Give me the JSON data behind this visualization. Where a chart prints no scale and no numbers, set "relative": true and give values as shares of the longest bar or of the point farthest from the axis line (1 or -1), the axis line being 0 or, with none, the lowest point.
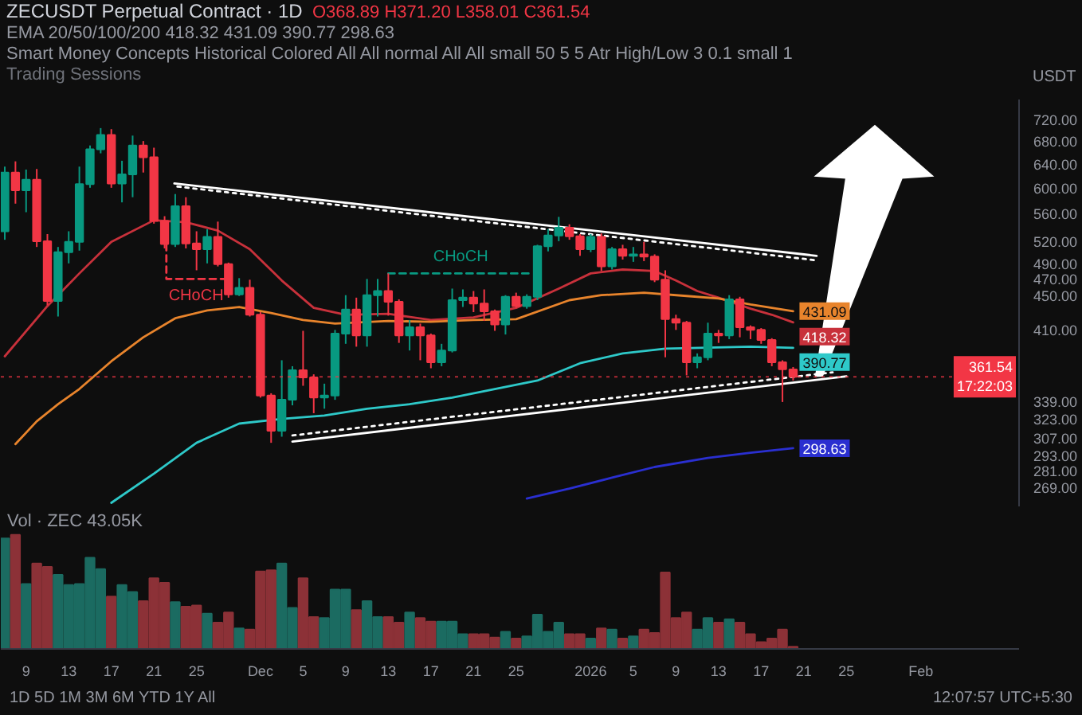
{
  "chart_data": [
    {
      "type": "candlestick",
      "title": "ZECUSDT Perpetual Contract · 1D",
      "subtitle": "O368.89 H371.20 L358.01 C361.54",
      "ylabel": "USDT",
      "annotations": [
        "EMA 20/50/100/200 418.32 431.09 390.77 298.63",
        "Smart Money Concepts Historical Colored All All normal All All small 50 5 5 Atr High/Low 3 0.1 small 1",
        "Trading Sessions"
      ],
      "x": [
        "2025-11-07",
        "2025-11-08",
        "2025-11-09",
        "2025-11-10",
        "2025-11-11",
        "2025-11-12",
        "2025-11-13",
        "2025-11-14",
        "2025-11-15",
        "2025-11-16",
        "2025-11-17",
        "2025-11-18",
        "2025-11-19",
        "2025-11-20",
        "2025-11-21",
        "2025-11-22",
        "2025-11-23",
        "2025-11-24",
        "2025-11-25",
        "2025-11-26",
        "2025-11-27",
        "2025-11-28",
        "2025-11-29",
        "2025-11-30",
        "2025-12-01",
        "2025-12-02",
        "2025-12-03",
        "2025-12-04",
        "2025-12-05",
        "2025-12-06",
        "2025-12-07",
        "2025-12-08",
        "2025-12-09",
        "2025-12-10",
        "2025-12-11",
        "2025-12-12",
        "2025-12-13",
        "2025-12-14",
        "2025-12-15",
        "2025-12-16",
        "2025-12-17",
        "2025-12-18",
        "2025-12-19",
        "2025-12-20",
        "2025-12-21",
        "2025-12-22",
        "2025-12-23",
        "2025-12-24",
        "2025-12-25",
        "2025-12-26",
        "2025-12-27",
        "2025-12-28",
        "2025-12-29",
        "2025-12-30",
        "2025-12-31",
        "2026-01-01",
        "2026-01-02",
        "2026-01-03",
        "2026-01-04",
        "2026-01-05",
        "2026-01-06",
        "2026-01-07",
        "2026-01-08",
        "2026-01-09",
        "2026-01-10",
        "2026-01-11",
        "2026-01-12",
        "2026-01-13",
        "2026-01-14",
        "2026-01-15",
        "2026-01-16",
        "2026-01-17",
        "2026-01-18",
        "2026-01-19",
        "2026-01-20"
      ],
      "ohlc": [
        [
          534,
          635,
          522,
          625
        ],
        [
          625,
          644,
          575,
          596
        ],
        [
          596,
          630,
          562,
          613
        ],
        [
          613,
          631,
          512,
          520
        ],
        [
          520,
          530,
          438,
          443
        ],
        [
          443,
          512,
          425,
          505
        ],
        [
          505,
          534,
          490,
          519
        ],
        [
          519,
          635,
          507,
          606
        ],
        [
          606,
          672,
          600,
          665
        ],
        [
          665,
          704,
          658,
          691
        ],
        [
          691,
          702,
          600,
          607
        ],
        [
          607,
          645,
          577,
          622
        ],
        [
          622,
          690,
          585,
          672
        ],
        [
          672,
          680,
          625,
          651
        ],
        [
          651,
          668,
          545,
          549
        ],
        [
          549,
          556,
          510,
          516
        ],
        [
          516,
          590,
          512,
          571
        ],
        [
          571,
          585,
          510,
          517
        ],
        [
          517,
          534,
          481,
          509
        ],
        [
          509,
          537,
          490,
          526
        ],
        [
          526,
          548,
          486,
          489
        ],
        [
          489,
          491,
          447,
          451
        ],
        [
          451,
          471,
          449,
          459
        ],
        [
          459,
          469,
          425,
          427
        ],
        [
          427,
          430,
          342,
          344
        ],
        [
          344,
          346,
          303,
          313
        ],
        [
          313,
          378,
          308,
          340
        ],
        [
          340,
          372,
          335,
          368
        ],
        [
          368,
          409,
          353,
          361
        ],
        [
          361,
          364,
          328,
          342
        ],
        [
          342,
          355,
          332,
          344
        ],
        [
          344,
          410,
          340,
          406
        ],
        [
          406,
          450,
          395,
          433
        ],
        [
          433,
          447,
          392,
          404
        ],
        [
          404,
          470,
          392,
          450
        ],
        [
          450,
          470,
          425,
          455
        ],
        [
          455,
          477,
          426,
          442
        ],
        [
          442,
          445,
          396,
          404
        ],
        [
          404,
          421,
          388,
          413
        ],
        [
          413,
          417,
          378,
          404
        ],
        [
          404,
          406,
          370,
          376
        ],
        [
          376,
          395,
          372,
          388
        ],
        [
          388,
          458,
          386,
          444
        ],
        [
          444,
          457,
          436,
          447
        ],
        [
          447,
          455,
          430,
          440
        ],
        [
          440,
          457,
          420,
          431
        ],
        [
          431,
          433,
          409,
          416
        ],
        [
          416,
          450,
          405,
          448
        ],
        [
          448,
          453,
          435,
          437
        ],
        [
          437,
          451,
          434,
          448
        ],
        [
          448,
          515,
          444,
          513
        ],
        [
          513,
          537,
          506,
          528
        ],
        [
          528,
          555,
          520,
          539
        ],
        [
          539,
          544,
          522,
          527
        ],
        [
          527,
          530,
          500,
          509
        ],
        [
          509,
          530,
          505,
          526
        ],
        [
          526,
          531,
          480,
          486
        ],
        [
          486,
          512,
          482,
          509
        ],
        [
          509,
          515,
          495,
          500
        ],
        [
          500,
          512,
          492,
          502
        ],
        [
          502,
          519,
          493,
          499
        ],
        [
          499,
          502,
          466,
          469
        ],
        [
          469,
          481,
          381,
          422
        ],
        [
          422,
          427,
          410,
          418
        ],
        [
          418,
          420,
          363,
          376
        ],
        [
          376,
          385,
          370,
          381
        ],
        [
          381,
          418,
          378,
          406
        ],
        [
          406,
          410,
          396,
          404
        ],
        [
          404,
          450,
          400,
          445
        ],
        [
          445,
          448,
          402,
          413
        ],
        [
          413,
          415,
          400,
          410
        ],
        [
          410,
          412,
          395,
          399
        ],
        [
          399,
          401,
          372,
          376
        ],
        [
          376,
          378,
          338,
          369
        ],
        [
          368.89,
          371.2,
          358.01,
          361.54
        ]
      ],
      "colors": [
        "#089981",
        "#f23645",
        "#089981",
        "#f23645",
        "#f23645",
        "#089981",
        "#089981",
        "#089981",
        "#089981",
        "#089981",
        "#f23645",
        "#089981",
        "#089981",
        "#f23645",
        "#f23645",
        "#f23645",
        "#089981",
        "#f23645",
        "#f23645",
        "#089981",
        "#f23645",
        "#f23645",
        "#089981",
        "#f23645",
        "#f23645",
        "#f23645",
        "#089981",
        "#089981",
        "#f23645",
        "#f23645",
        "#089981",
        "#089981",
        "#089981",
        "#f23645",
        "#089981",
        "#089981",
        "#f23645",
        "#f23645",
        "#089981",
        "#f23645",
        "#f23645",
        "#089981",
        "#089981",
        "#089981",
        "#f23645",
        "#f23645",
        "#f23645",
        "#089981",
        "#f23645",
        "#089981",
        "#089981",
        "#089981",
        "#089981",
        "#f23645",
        "#f23645",
        "#089981",
        "#f23645",
        "#089981",
        "#f23645",
        "#089981",
        "#f23645",
        "#f23645",
        "#f23645",
        "#f23645",
        "#f23645",
        "#089981",
        "#089981",
        "#f23645",
        "#089981",
        "#f23645",
        "#f23645",
        "#f23645",
        "#f23645",
        "#f23645",
        "#f23645"
      ],
      "series": [
        {
          "type": "line",
          "color": "#c8313b",
          "x": [
            "2025-11-07",
            "2025-11-11",
            "2025-11-14",
            "2025-11-17",
            "2025-11-21",
            "2025-11-24",
            "2025-11-27",
            "2025-11-30",
            "2025-12-03",
            "2025-12-06",
            "2025-12-09",
            "2025-12-13",
            "2025-12-17",
            "2025-12-21",
            "2025-12-25",
            "2025-12-29",
            "2026-01-01",
            "2026-01-04",
            "2026-01-07",
            "2026-01-09",
            "2026-01-11",
            "2026-01-13",
            "2026-01-16",
            "2026-01-18",
            "2026-01-20"
          ],
          "values": [
            382,
            437,
            477,
            519,
            550,
            547,
            535,
            509,
            468,
            435,
            427,
            428,
            421,
            424,
            435,
            458,
            477,
            482,
            480,
            468,
            455,
            447,
            434,
            427,
            418.32
          ],
          "value_labels": [
            null,
            null,
            null,
            null,
            null,
            null,
            null,
            null,
            null,
            null,
            null,
            null,
            null,
            null,
            null,
            null,
            null,
            null,
            null,
            null,
            null,
            null,
            null,
            null,
            "418.32"
          ]
        },
        {
          "type": "line",
          "color": "#e8842c",
          "x": [
            "2025-11-08",
            "2025-11-10",
            "2025-11-12",
            "2025-11-14",
            "2025-11-17",
            "2025-11-20",
            "2025-11-23",
            "2025-11-26",
            "2025-11-29",
            "2025-12-02",
            "2025-12-05",
            "2025-12-08",
            "2025-12-13",
            "2025-12-17",
            "2025-12-21",
            "2025-12-25",
            "2025-12-30",
            "2026-01-02",
            "2026-01-06",
            "2026-01-10",
            "2026-01-13",
            "2026-01-16",
            "2026-01-20"
          ],
          "values": [
            302,
            321,
            336,
            350,
            377,
            402,
            423,
            432,
            436,
            429,
            421,
            417,
            420,
            419,
            421,
            422,
            444,
            450,
            453,
            449,
            446,
            439,
            431.09
          ],
          "value_labels": [
            null,
            null,
            null,
            null,
            null,
            null,
            null,
            null,
            null,
            null,
            null,
            null,
            null,
            null,
            null,
            null,
            null,
            null,
            null,
            null,
            null,
            null,
            "431.09"
          ]
        },
        {
          "type": "line",
          "color": "#2ec9c9",
          "x": [
            "2025-11-17",
            "2025-11-21",
            "2025-11-25",
            "2025-11-29",
            "2025-12-03",
            "2025-12-07",
            "2025-12-11",
            "2025-12-15",
            "2025-12-19",
            "2025-12-23",
            "2025-12-27",
            "2025-12-31",
            "2026-01-04",
            "2026-01-08",
            "2026-01-12",
            "2026-01-16",
            "2026-01-20"
          ],
          "values": [
            258,
            279,
            303,
            319,
            323,
            326,
            332,
            336,
            342,
            350,
            358,
            375,
            385,
            390,
            391,
            392,
            390.77
          ],
          "value_labels": [
            null,
            null,
            null,
            null,
            null,
            null,
            null,
            null,
            null,
            null,
            null,
            null,
            null,
            null,
            null,
            null,
            "390.77"
          ]
        },
        {
          "type": "line",
          "color": "#2a2fd0",
          "x": [
            "2025-12-26",
            "2025-12-30",
            "2026-01-03",
            "2026-01-07",
            "2026-01-12",
            "2026-01-16",
            "2026-01-20"
          ],
          "values": [
            261,
            268,
            276,
            284,
            291,
            295,
            298.63
          ],
          "value_labels": [
            null,
            null,
            null,
            null,
            null,
            null,
            "298.63"
          ]
        },
        {
          "type": "line",
          "color": "#ffffff",
          "line_style": "solid",
          "x": [
            "2025-11-22T22:00",
            "2026-01-22T05:00"
          ],
          "values": [
            607,
            500
          ]
        },
        {
          "type": "line",
          "color": "#ffffff",
          "line_style": "dotted",
          "x": [
            "2025-11-23T05:00",
            "2026-01-22T05:00"
          ],
          "values": [
            602,
            494
          ]
        },
        {
          "type": "line",
          "color": "#ffffff",
          "line_style": "solid",
          "x": [
            "2025-12-04",
            "2026-01-25"
          ],
          "values": [
            304,
            362
          ]
        },
        {
          "type": "line",
          "color": "#ffffff",
          "line_style": "dotted",
          "x": [
            "2025-12-04",
            "2026-01-23T17:00"
          ],
          "values": [
            309,
            366
          ]
        },
        {
          "type": "line",
          "name": "CHoCH",
          "color": "#f23645",
          "line_style": "dashed",
          "x": [
            "2025-11-22T04:00",
            "2025-11-22T04:00",
            "2025-11-27T18:00"
          ],
          "values": [
            516,
            470,
            470
          ]
        },
        {
          "type": "line",
          "name": "CHoCH",
          "color": "#089981",
          "line_style": "dashed",
          "x": [
            "2025-12-13",
            "2025-12-26T14:00"
          ],
          "values": [
            477,
            477
          ]
        }
      ],
      "ref_lines": [
        {
          "axis": "y",
          "value": 361.54,
          "label": "361.54\n17:22:03",
          "color": "#f23645",
          "line_style": "dotted"
        }
      ],
      "xlim": [
        "2025-11-06T15:00",
        "2026-02-10T05:00"
      ],
      "ylim": [
        255,
        760
      ],
      "log": true,
      "yticks": [
        {
          "value": 720,
          "label": "720.00"
        },
        {
          "value": 680,
          "label": "680.00"
        },
        {
          "value": 640,
          "label": "640.00"
        },
        {
          "value": 600,
          "label": "600.00"
        },
        {
          "value": 560,
          "label": "560.00"
        },
        {
          "value": 520,
          "label": "520.00"
        },
        {
          "value": 490,
          "label": "490.00"
        },
        {
          "value": 470,
          "label": "470.00"
        },
        {
          "value": 450,
          "label": "450.00"
        },
        {
          "value": 410,
          "label": "410.00"
        },
        {
          "value": 339,
          "label": "339.00"
        },
        {
          "value": 323,
          "label": "323.00"
        },
        {
          "value": 307,
          "label": "307.00"
        },
        {
          "value": 293,
          "label": "293.00"
        },
        {
          "value": 281,
          "label": "281.00"
        },
        {
          "value": 269,
          "label": "269.00"
        }
      ],
      "tick_labels": "y"
    },
    {
      "type": "bar",
      "title": "Vol · ZEC 43.05K",
      "relative": true,
      "annotations": [
        "1D 5D 1M 3M 6M YTD 1Y All",
        "12:07:57 UTC+5:30"
      ],
      "x": [
        "2025-11-07",
        "2025-11-08",
        "2025-11-09",
        "2025-11-10",
        "2025-11-11",
        "2025-11-12",
        "2025-11-13",
        "2025-11-14",
        "2025-11-15",
        "2025-11-16",
        "2025-11-17",
        "2025-11-18",
        "2025-11-19",
        "2025-11-20",
        "2025-11-21",
        "2025-11-22",
        "2025-11-23",
        "2025-11-24",
        "2025-11-25",
        "2025-11-26",
        "2025-11-27",
        "2025-11-28",
        "2025-11-29",
        "2025-11-30",
        "2025-12-01",
        "2025-12-02",
        "2025-12-03",
        "2025-12-04",
        "2025-12-05",
        "2025-12-06",
        "2025-12-07",
        "2025-12-08",
        "2025-12-09",
        "2025-12-10",
        "2025-12-11",
        "2025-12-12",
        "2025-12-13",
        "2025-12-14",
        "2025-12-15",
        "2025-12-16",
        "2025-12-17",
        "2025-12-18",
        "2025-12-19",
        "2025-12-20",
        "2025-12-21",
        "2025-12-22",
        "2025-12-23",
        "2025-12-24",
        "2025-12-25",
        "2025-12-26",
        "2025-12-27",
        "2025-12-28",
        "2025-12-29",
        "2025-12-30",
        "2025-12-31",
        "2026-01-01",
        "2026-01-02",
        "2026-01-03",
        "2026-01-04",
        "2026-01-05",
        "2026-01-06",
        "2026-01-07",
        "2026-01-08",
        "2026-01-09",
        "2026-01-10",
        "2026-01-11",
        "2026-01-12",
        "2026-01-13",
        "2026-01-14",
        "2026-01-15",
        "2026-01-16",
        "2026-01-17",
        "2026-01-18",
        "2026-01-19",
        "2026-01-20"
      ],
      "values": [
        0.97,
        1,
        0.57,
        0.75,
        0.72,
        0.65,
        0.56,
        0.57,
        0.8,
        0.7,
        0.46,
        0.56,
        0.5,
        0.42,
        0.62,
        0.58,
        0.41,
        0.37,
        0.38,
        0.31,
        0.23,
        0.32,
        0.18,
        0.17,
        0.68,
        0.69,
        0.75,
        0.36,
        0.62,
        0.28,
        0.27,
        0.52,
        0.52,
        0.34,
        0.42,
        0.28,
        0.28,
        0.23,
        0.32,
        0.27,
        0.24,
        0.24,
        0.24,
        0.13,
        0.13,
        0.13,
        0.1,
        0.15,
        0.09,
        0.11,
        0.3,
        0.15,
        0.23,
        0.13,
        0.13,
        0.09,
        0.18,
        0.17,
        0.09,
        0.11,
        0.17,
        0.14,
        0.67,
        0.27,
        0.32,
        0.17,
        0.27,
        0.23,
        0.26,
        0.23,
        0.13,
        0.06,
        0.09,
        0.17,
        0.02
      ],
      "colors": [
        "#1b6b61",
        "#8c3137",
        "#1b6b61",
        "#8c3137",
        "#8c3137",
        "#1b6b61",
        "#1b6b61",
        "#1b6b61",
        "#1b6b61",
        "#1b6b61",
        "#8c3137",
        "#1b6b61",
        "#1b6b61",
        "#8c3137",
        "#8c3137",
        "#8c3137",
        "#1b6b61",
        "#8c3137",
        "#8c3137",
        "#1b6b61",
        "#8c3137",
        "#8c3137",
        "#1b6b61",
        "#8c3137",
        "#8c3137",
        "#8c3137",
        "#1b6b61",
        "#1b6b61",
        "#8c3137",
        "#8c3137",
        "#1b6b61",
        "#1b6b61",
        "#1b6b61",
        "#8c3137",
        "#1b6b61",
        "#1b6b61",
        "#8c3137",
        "#8c3137",
        "#1b6b61",
        "#8c3137",
        "#8c3137",
        "#1b6b61",
        "#1b6b61",
        "#1b6b61",
        "#8c3137",
        "#8c3137",
        "#8c3137",
        "#1b6b61",
        "#8c3137",
        "#1b6b61",
        "#1b6b61",
        "#1b6b61",
        "#1b6b61",
        "#8c3137",
        "#8c3137",
        "#1b6b61",
        "#8c3137",
        "#1b6b61",
        "#8c3137",
        "#1b6b61",
        "#8c3137",
        "#8c3137",
        "#8c3137",
        "#8c3137",
        "#8c3137",
        "#1b6b61",
        "#1b6b61",
        "#8c3137",
        "#1b6b61",
        "#8c3137",
        "#8c3137",
        "#8c3137",
        "#8c3137",
        "#8c3137",
        "#8c3137"
      ],
      "xlim": [
        "2025-11-06T15:00",
        "2026-02-10T05:00"
      ],
      "xticks": [
        {
          "value": "2025-11-09",
          "label": "9"
        },
        {
          "value": "2025-11-13",
          "label": "13"
        },
        {
          "value": "2025-11-17",
          "label": "17"
        },
        {
          "value": "2025-11-21",
          "label": "21"
        },
        {
          "value": "2025-11-25",
          "label": "25"
        },
        {
          "value": "2025-12-01",
          "label": "Dec"
        },
        {
          "value": "2025-12-05",
          "label": "5"
        },
        {
          "value": "2025-12-09",
          "label": "9"
        },
        {
          "value": "2025-12-13",
          "label": "13"
        },
        {
          "value": "2025-12-17",
          "label": "17"
        },
        {
          "value": "2025-12-21",
          "label": "21"
        },
        {
          "value": "2025-12-25",
          "label": "25"
        },
        {
          "value": "2026-01-01",
          "label": "2026"
        },
        {
          "value": "2026-01-05",
          "label": "5"
        },
        {
          "value": "2026-01-09",
          "label": "9"
        },
        {
          "value": "2026-01-13",
          "label": "13"
        },
        {
          "value": "2026-01-17",
          "label": "17"
        },
        {
          "value": "2026-01-21",
          "label": "21"
        },
        {
          "value": "2026-01-25",
          "label": "25"
        },
        {
          "value": "2026-02-01",
          "label": "Feb"
        }
      ],
      "tick_labels": "x"
    }
  ]
}
